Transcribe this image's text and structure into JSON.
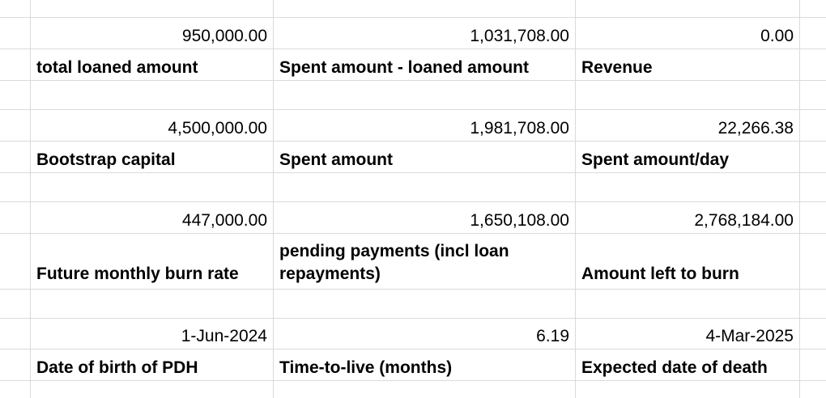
{
  "rows": [
    {
      "c1": "950,000.00",
      "c2": "1,031,708.00",
      "c3": "0.00"
    },
    {
      "c1": "total loaned amount",
      "c2": "Spent amount - loaned amount",
      "c3": "Revenue"
    },
    {
      "c1": "4,500,000.00",
      "c2": "1,981,708.00",
      "c3": "22,266.38"
    },
    {
      "c1": "Bootstrap capital",
      "c2": "Spent amount",
      "c3": "Spent amount/day"
    },
    {
      "c1": "447,000.00",
      "c2": "1,650,108.00",
      "c3": "2,768,184.00"
    },
    {
      "c1": "Future monthly burn rate",
      "c2": "pending payments (incl loan repayments)",
      "c3": "Amount left to burn"
    },
    {
      "c1": "1-Jun-2024",
      "c2": "6.19",
      "c3": "4-Mar-2025"
    },
    {
      "c1": "Date of birth of PDH",
      "c2": "Time-to-live (months)",
      "c3": "Expected date of death"
    }
  ]
}
